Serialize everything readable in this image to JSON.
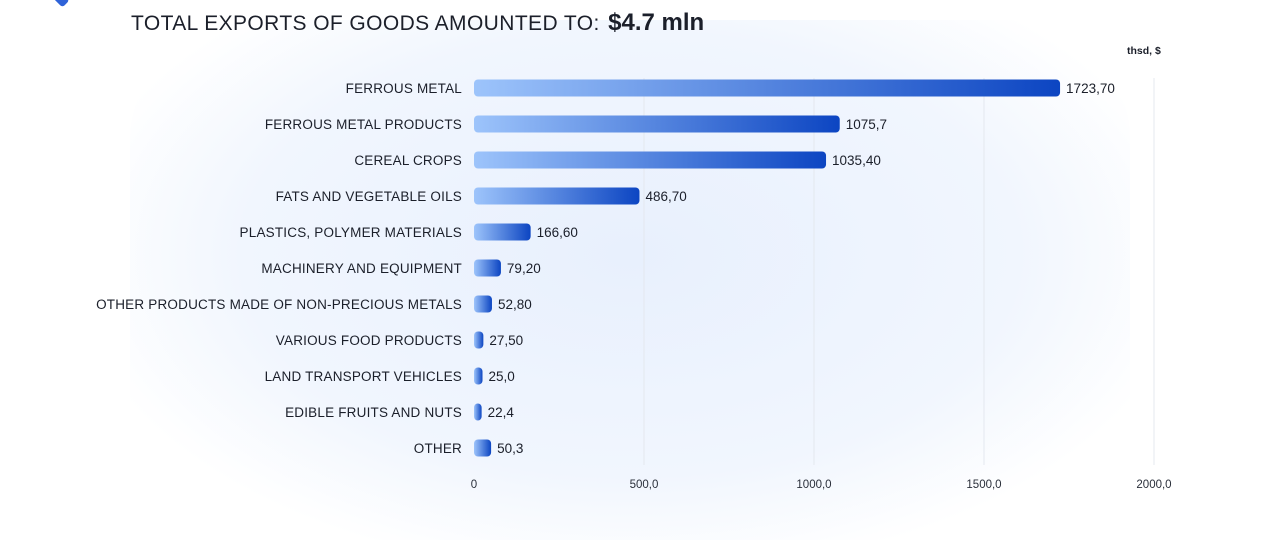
{
  "header": {
    "title_label": "TOTAL EXPORTS OF GOODS AMOUNTED TO:",
    "title_value": "$4.7 mln",
    "unit_label": "thsd, $"
  },
  "colors": {
    "bar_light": "#9dc4fb",
    "bar_dark": "#0c45c2",
    "text": "#1b1f2a",
    "grid": "#e4e8ef"
  },
  "chart_data": {
    "type": "bar",
    "orientation": "horizontal",
    "categories": [
      "FERROUS METAL",
      "FERROUS METAL PRODUCTS",
      "CEREAL CROPS",
      "FATS AND VEGETABLE OILS",
      "PLASTICS, POLYMER MATERIALS",
      "MACHINERY AND EQUIPMENT",
      "OTHER PRODUCTS MADE OF NON-PRECIOUS METALS",
      "VARIOUS FOOD PRODUCTS",
      "LAND TRANSPORT VEHICLES",
      "EDIBLE FRUITS AND NUTS",
      "OTHER"
    ],
    "values": [
      1723.7,
      1075.7,
      1035.4,
      486.7,
      166.6,
      79.2,
      52.8,
      27.5,
      25.0,
      22.4,
      50.3
    ],
    "value_labels": [
      "1723,70",
      "1075,7",
      "1035,40",
      "486,70",
      "166,60",
      "79,20",
      "52,80",
      "27,50",
      "25,0",
      "22,4",
      "50,3"
    ],
    "title": "TOTAL EXPORTS OF GOODS AMOUNTED TO: $4.7 mln",
    "xlabel": "thsd, $",
    "ylabel": "",
    "xlim": [
      0,
      2000
    ],
    "x_ticks": [
      0,
      500,
      1000,
      1500,
      2000
    ],
    "x_tick_labels": [
      "0",
      "500,0",
      "1000,0",
      "1500,0",
      "2000,0"
    ],
    "grid": "vertical",
    "legend": "none"
  }
}
